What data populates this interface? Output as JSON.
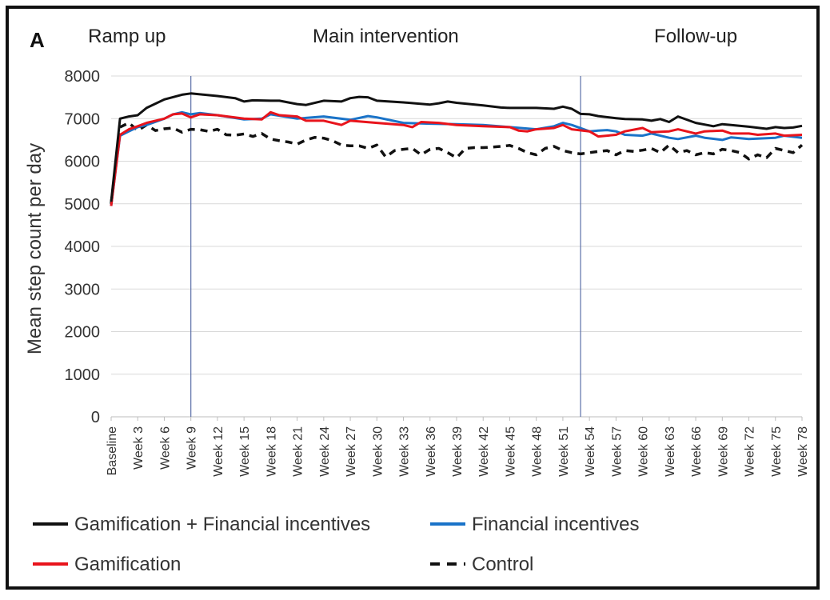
{
  "panel_letter": "A",
  "chart_data": {
    "type": "line",
    "title": "",
    "xlabel": "",
    "ylabel": "Mean step count per day",
    "ylim": [
      0,
      8000
    ],
    "yticks": [
      0,
      1000,
      2000,
      3000,
      4000,
      5000,
      6000,
      7000,
      8000
    ],
    "grid": true,
    "legend_position": "bottom",
    "phases": [
      {
        "label": "Ramp up",
        "start_week": 0,
        "end_week": 9
      },
      {
        "label": "Main intervention",
        "start_week": 9,
        "end_week": 53
      },
      {
        "label": "Follow-up",
        "start_week": 53,
        "end_week": 79
      }
    ],
    "phase_boundaries": [
      9,
      53
    ],
    "x_tick_labels": [
      "Baseline",
      "Week 3",
      "Week 6",
      "Week 9",
      "Week 12",
      "Week 15",
      "Week 18",
      "Week 21",
      "Week 24",
      "Week 27",
      "Week 30",
      "Week 33",
      "Week 36",
      "Week 39",
      "Week 42",
      "Week 45",
      "Week 48",
      "Week 51",
      "Week 54",
      "Week 57",
      "Week 60",
      "Week 63",
      "Week 66",
      "Week 69",
      "Week 72",
      "Week 75",
      "Week 78"
    ],
    "x_tick_weeks": [
      0,
      3,
      6,
      9,
      12,
      15,
      18,
      21,
      24,
      27,
      30,
      33,
      36,
      39,
      42,
      45,
      48,
      51,
      54,
      57,
      60,
      63,
      66,
      69,
      72,
      75,
      78
    ],
    "x_range": [
      0,
      78
    ],
    "series": [
      {
        "name": "Gamification + Financial incentives",
        "color": "#111111",
        "dash": "solid",
        "x": [
          0,
          1,
          2,
          3,
          4,
          6,
          8,
          9,
          12,
          14,
          15,
          16,
          18,
          19,
          20,
          21,
          22,
          24,
          26,
          27,
          28,
          29,
          30,
          33,
          36,
          37,
          38,
          39,
          42,
          44,
          45,
          48,
          50,
          51,
          52,
          53,
          54,
          55,
          57,
          58,
          60,
          61,
          62,
          63,
          64,
          66,
          67,
          68,
          69,
          70,
          72,
          74,
          75,
          76,
          77,
          78
        ],
        "values": [
          5050,
          7000,
          7050,
          7080,
          7250,
          7450,
          7560,
          7590,
          7530,
          7480,
          7400,
          7430,
          7420,
          7420,
          7380,
          7340,
          7320,
          7420,
          7400,
          7480,
          7510,
          7500,
          7420,
          7380,
          7330,
          7360,
          7400,
          7370,
          7310,
          7260,
          7250,
          7250,
          7230,
          7280,
          7230,
          7110,
          7100,
          7060,
          7010,
          6990,
          6980,
          6950,
          6990,
          6920,
          7050,
          6900,
          6860,
          6820,
          6870,
          6850,
          6810,
          6760,
          6800,
          6780,
          6790,
          6830
        ]
      },
      {
        "name": "Financial incentives",
        "color": "#1a73c8",
        "dash": "solid",
        "x": [
          0,
          1,
          2,
          3,
          4,
          6,
          7,
          8,
          9,
          10,
          12,
          15,
          17,
          18,
          21,
          24,
          27,
          29,
          30,
          33,
          36,
          39,
          42,
          45,
          48,
          50,
          51,
          52,
          54,
          55,
          56,
          57,
          58,
          60,
          61,
          63,
          64,
          66,
          67,
          69,
          70,
          72,
          75,
          76,
          78
        ],
        "values": [
          4950,
          6600,
          6700,
          6800,
          6850,
          7000,
          7100,
          7150,
          7100,
          7130,
          7080,
          6980,
          7000,
          7100,
          7000,
          7050,
          6970,
          7060,
          7030,
          6900,
          6880,
          6870,
          6850,
          6800,
          6750,
          6820,
          6900,
          6850,
          6700,
          6720,
          6730,
          6700,
          6620,
          6600,
          6650,
          6550,
          6520,
          6600,
          6550,
          6500,
          6560,
          6520,
          6550,
          6600,
          6550
        ]
      },
      {
        "name": "Gamification",
        "color": "#e8141c",
        "dash": "solid",
        "x": [
          0,
          1,
          2,
          3,
          4,
          6,
          7,
          8,
          9,
          10,
          12,
          15,
          17,
          18,
          19,
          21,
          22,
          24,
          26,
          27,
          30,
          33,
          34,
          35,
          37,
          39,
          42,
          45,
          46,
          47,
          48,
          50,
          51,
          52,
          54,
          55,
          57,
          58,
          60,
          61,
          63,
          64,
          66,
          67,
          69,
          70,
          72,
          73,
          75,
          76,
          78
        ],
        "values": [
          4950,
          6620,
          6750,
          6820,
          6900,
          7000,
          7100,
          7120,
          7030,
          7100,
          7080,
          7000,
          6980,
          7150,
          7080,
          7050,
          6950,
          6950,
          6850,
          6950,
          6900,
          6850,
          6800,
          6920,
          6900,
          6850,
          6820,
          6800,
          6720,
          6700,
          6750,
          6780,
          6850,
          6750,
          6700,
          6580,
          6620,
          6700,
          6780,
          6680,
          6700,
          6750,
          6650,
          6700,
          6720,
          6650,
          6650,
          6620,
          6650,
          6600,
          6620
        ]
      },
      {
        "name": "Control",
        "color": "#111111",
        "dash": "dashed",
        "x": [
          0,
          1,
          2,
          3,
          4,
          5,
          6,
          7,
          8,
          9,
          10,
          11,
          12,
          13,
          14,
          15,
          16,
          17,
          18,
          19,
          20,
          21,
          22,
          23,
          24,
          25,
          26,
          27,
          28,
          29,
          30,
          31,
          32,
          33,
          34,
          35,
          36,
          37,
          38,
          39,
          40,
          41,
          42,
          43,
          44,
          45,
          46,
          47,
          48,
          49,
          50,
          51,
          52,
          53,
          54,
          55,
          56,
          57,
          58,
          59,
          60,
          61,
          62,
          63,
          64,
          65,
          66,
          67,
          68,
          69,
          70,
          71,
          72,
          73,
          74,
          75,
          76,
          77,
          78
        ],
        "values": [
          5000,
          6800,
          6900,
          6720,
          6850,
          6720,
          6760,
          6780,
          6680,
          6750,
          6740,
          6700,
          6750,
          6620,
          6610,
          6640,
          6580,
          6650,
          6520,
          6480,
          6450,
          6400,
          6500,
          6560,
          6540,
          6480,
          6380,
          6360,
          6360,
          6300,
          6380,
          6100,
          6250,
          6280,
          6300,
          6150,
          6280,
          6300,
          6200,
          6080,
          6300,
          6320,
          6320,
          6330,
          6350,
          6370,
          6300,
          6200,
          6150,
          6300,
          6350,
          6250,
          6200,
          6170,
          6200,
          6230,
          6250,
          6150,
          6250,
          6230,
          6260,
          6300,
          6200,
          6380,
          6200,
          6250,
          6150,
          6200,
          6170,
          6280,
          6250,
          6200,
          6050,
          6150,
          6080,
          6300,
          6250,
          6200,
          6380
        ]
      }
    ]
  }
}
